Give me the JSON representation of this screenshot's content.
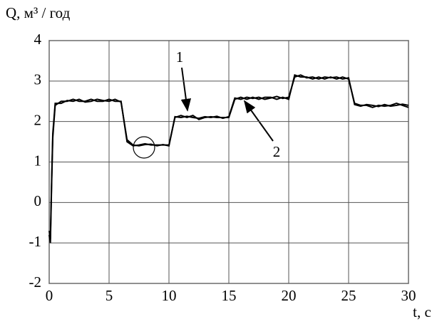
{
  "chart_data": {
    "type": "line",
    "y_label": "Q, м³ / год",
    "x_label": "t, c",
    "x": [
      0,
      0.1,
      0.2,
      0.3,
      0.5,
      1,
      1.5,
      2,
      2.5,
      3,
      3.5,
      4,
      4.5,
      5,
      5.5,
      6,
      6.5,
      7,
      7.5,
      8,
      8.5,
      9,
      9.5,
      10,
      10.5,
      11,
      11.5,
      12,
      12.5,
      13,
      13.5,
      14,
      14.5,
      15,
      15.5,
      16,
      16.5,
      17,
      17.5,
      18,
      18.5,
      19,
      19.5,
      20,
      20.5,
      21,
      21.5,
      22,
      22.5,
      23,
      23.5,
      24,
      24.5,
      25,
      25.5,
      26,
      26.5,
      27,
      27.5,
      28,
      28.5,
      29,
      29.5,
      30
    ],
    "series": [
      {
        "name": "1",
        "color": "#000000",
        "values": [
          -0.8,
          -1.0,
          0.4,
          1.6,
          2.4,
          2.5,
          2.5,
          2.55,
          2.5,
          2.5,
          2.55,
          2.5,
          2.5,
          2.55,
          2.5,
          2.5,
          1.5,
          1.4,
          1.42,
          1.45,
          1.42,
          1.42,
          1.42,
          1.42,
          2.1,
          2.15,
          2.1,
          2.15,
          2.05,
          2.1,
          2.12,
          2.1,
          2.1,
          2.1,
          2.55,
          2.6,
          2.55,
          2.6,
          2.55,
          2.6,
          2.6,
          2.55,
          2.6,
          2.55,
          3.15,
          3.1,
          3.1,
          3.05,
          3.1,
          3.05,
          3.1,
          3.05,
          3.1,
          3.05,
          2.45,
          2.4,
          2.4,
          2.35,
          2.4,
          2.38,
          2.4,
          2.45,
          2.4,
          2.35
        ]
      },
      {
        "name": "2",
        "color": "#000000",
        "values": [
          -0.7,
          -0.9,
          0.5,
          1.7,
          2.45,
          2.45,
          2.52,
          2.5,
          2.55,
          2.48,
          2.5,
          2.55,
          2.52,
          2.5,
          2.55,
          2.48,
          1.55,
          1.42,
          1.4,
          1.43,
          1.44,
          1.4,
          1.43,
          1.4,
          2.12,
          2.1,
          2.13,
          2.1,
          2.08,
          2.12,
          2.1,
          2.13,
          2.08,
          2.12,
          2.58,
          2.55,
          2.6,
          2.57,
          2.6,
          2.55,
          2.58,
          2.62,
          2.57,
          2.6,
          3.1,
          3.15,
          3.08,
          3.1,
          3.05,
          3.1,
          3.08,
          3.1,
          3.05,
          3.08,
          2.42,
          2.38,
          2.42,
          2.4,
          2.37,
          2.42,
          2.38,
          2.4,
          2.43,
          2.4
        ]
      }
    ],
    "xlim": [
      0,
      30
    ],
    "xticks": [
      0,
      5,
      10,
      15,
      20,
      25,
      30
    ],
    "ylim": [
      -2,
      4
    ],
    "yticks": [
      -2,
      -1,
      0,
      1,
      2,
      3,
      4
    ],
    "grid": true
  }
}
